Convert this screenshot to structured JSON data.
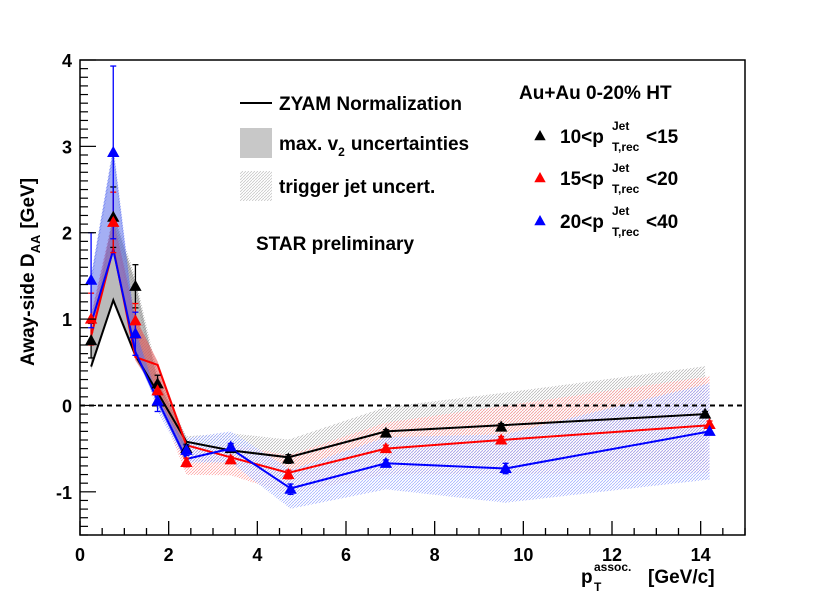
{
  "chart_data": {
    "type": "line",
    "ylabel": "Away-side D",
    "ylabel_sub": "AA",
    "ylabel_unit": "[GeV]",
    "xlabel": "p",
    "xlabel_sup": "assoc.",
    "xlabel_sub": "T",
    "xlabel_unit": "[GeV/c]",
    "xlim": [
      0,
      15
    ],
    "ylim": [
      -1.5,
      4
    ],
    "x_ticks": [
      "0",
      "2",
      "4",
      "6",
      "8",
      "10",
      "12",
      "14"
    ],
    "y_ticks": [
      "-1",
      "0",
      "1",
      "2",
      "3",
      "4"
    ],
    "x_tick_values": [
      0,
      2,
      4,
      6,
      8,
      10,
      12,
      14
    ],
    "y_tick_values": [
      -1,
      0,
      1,
      2,
      3,
      4
    ],
    "grid": false,
    "zero_line": true,
    "annotations": {
      "legend_zyam": "ZYAM Normalization",
      "legend_v2_pre": "max. v",
      "legend_v2_sub": "2",
      "legend_v2_post": "uncertainties",
      "legend_trigger": "trigger jet uncert.",
      "preliminary": "STAR preliminary",
      "system": "Au+Au 0-20% HT"
    },
    "series_labels": [
      {
        "pre": "10<p",
        "sup": "Jet",
        "sub": "T,rec",
        "post": "<15"
      },
      {
        "pre": "15<p",
        "sup": "Jet",
        "sub": "T,rec",
        "post": "<20"
      },
      {
        "pre": "20<p",
        "sup": "Jet",
        "sub": "T,rec",
        "post": "<40"
      }
    ],
    "series": [
      {
        "name": "10<pT,rec Jet<15",
        "color": "#000000",
        "x": [
          0.25,
          0.75,
          1.25,
          1.75,
          2.4,
          3.4,
          4.7,
          6.9,
          9.5,
          14.1
        ],
        "y": [
          0.75,
          2.18,
          1.38,
          0.25,
          -0.5,
          -0.5,
          -0.62,
          -0.32,
          -0.25,
          -0.1
        ],
        "yerr": [
          0.2,
          0.35,
          0.25,
          0.1,
          0.05,
          0.04,
          0.05,
          0.04,
          0.04,
          0.03
        ],
        "zyam": [
          0.45,
          1.22,
          0.58,
          0.15,
          -0.42,
          -0.52,
          -0.6,
          -0.3,
          -0.23,
          -0.1
        ]
      },
      {
        "name": "15<pT,rec Jet<20",
        "color": "#ff0000",
        "x": [
          0.25,
          0.75,
          1.25,
          1.75,
          2.4,
          3.4,
          4.7,
          6.9,
          9.5,
          14.2
        ],
        "y": [
          1.0,
          2.12,
          0.98,
          0.17,
          -0.66,
          -0.63,
          -0.8,
          -0.5,
          -0.4,
          -0.22
        ],
        "yerr": [
          0.3,
          0.35,
          0.2,
          0.1,
          0.05,
          0.04,
          0.05,
          0.04,
          0.04,
          0.04
        ],
        "zyam": [
          0.8,
          1.82,
          0.56,
          0.47,
          -0.46,
          -0.6,
          -0.78,
          -0.5,
          -0.4,
          -0.23
        ]
      },
      {
        "name": "20<pT,rec Jet<40",
        "color": "#0000ff",
        "x": [
          0.25,
          0.75,
          1.25,
          1.75,
          2.4,
          3.4,
          4.75,
          6.9,
          9.6,
          14.2
        ],
        "y": [
          1.45,
          2.93,
          0.83,
          0.05,
          -0.52,
          -0.48,
          -0.97,
          -0.67,
          -0.73,
          -0.3
        ],
        "yerr": [
          0.55,
          1.0,
          0.25,
          0.12,
          0.06,
          0.04,
          0.06,
          0.04,
          0.06,
          0.04
        ],
        "zyam": [
          0.95,
          1.8,
          0.62,
          0.06,
          -0.62,
          -0.5,
          -0.96,
          -0.67,
          -0.73,
          -0.3
        ]
      }
    ]
  }
}
